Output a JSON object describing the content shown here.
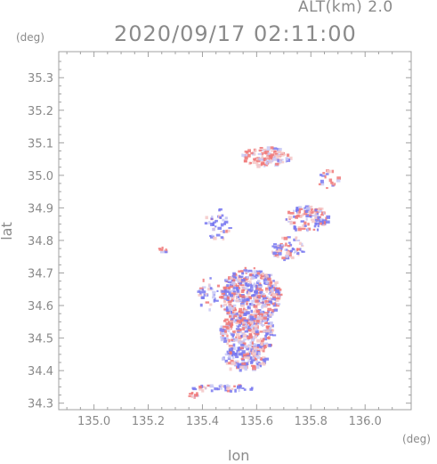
{
  "header": {
    "alt_label": "ALT(km)  2.0",
    "time_label": "2020/09/17 02:11:00"
  },
  "chart_data": {
    "type": "heatmap",
    "title": "2020/09/17 02:11:00",
    "subtitle": "ALT(km)  2.0",
    "xlabel": "lon",
    "ylabel": "lat",
    "x_unit": "(deg)",
    "y_unit": "(deg)",
    "xlim": [
      134.87,
      136.17
    ],
    "ylim": [
      34.28,
      35.38
    ],
    "x_ticks": [
      "135.0",
      "135.2",
      "135.4",
      "135.6",
      "135.8",
      "136.0"
    ],
    "y_ticks": [
      "34.3",
      "34.4",
      "34.5",
      "34.6",
      "34.7",
      "34.8",
      "34.9",
      "35.0",
      "35.1",
      "35.2",
      "35.3"
    ],
    "grid": false,
    "colors": {
      "positive": "#f07878",
      "negative": "#7878f0",
      "neutral": "#f5c8c8",
      "frame": "#a0a0a0"
    },
    "clusters": [
      {
        "lon": 135.57,
        "lat": 34.63,
        "rlon": 0.11,
        "rlat": 0.09,
        "n": 520,
        "bias": 0.0
      },
      {
        "lon": 135.56,
        "lat": 34.52,
        "rlon": 0.1,
        "rlat": 0.07,
        "n": 300,
        "bias": 0.1
      },
      {
        "lon": 135.55,
        "lat": 34.44,
        "rlon": 0.08,
        "rlat": 0.04,
        "n": 130,
        "bias": -0.2
      },
      {
        "lon": 135.63,
        "lat": 35.06,
        "rlon": 0.09,
        "rlat": 0.03,
        "n": 120,
        "bias": 0.6
      },
      {
        "lon": 135.78,
        "lat": 34.87,
        "rlon": 0.08,
        "rlat": 0.04,
        "n": 110,
        "bias": 0.1
      },
      {
        "lon": 135.71,
        "lat": 34.78,
        "rlon": 0.06,
        "rlat": 0.04,
        "n": 70,
        "bias": -0.3
      },
      {
        "lon": 135.45,
        "lat": 34.85,
        "rlon": 0.05,
        "rlat": 0.05,
        "n": 40,
        "bias": -0.4
      },
      {
        "lon": 135.47,
        "lat": 34.35,
        "rlon": 0.12,
        "rlat": 0.01,
        "n": 45,
        "bias": -0.3
      },
      {
        "lon": 135.36,
        "lat": 34.33,
        "rlon": 0.02,
        "rlat": 0.008,
        "n": 10,
        "bias": 0.9
      },
      {
        "lon": 135.25,
        "lat": 34.77,
        "rlon": 0.015,
        "rlat": 0.02,
        "n": 8,
        "bias": 0.6
      },
      {
        "lon": 135.42,
        "lat": 34.64,
        "rlon": 0.04,
        "rlat": 0.05,
        "n": 35,
        "bias": -0.5
      },
      {
        "lon": 135.87,
        "lat": 34.99,
        "rlon": 0.05,
        "rlat": 0.03,
        "n": 20,
        "bias": 0.2
      }
    ]
  }
}
